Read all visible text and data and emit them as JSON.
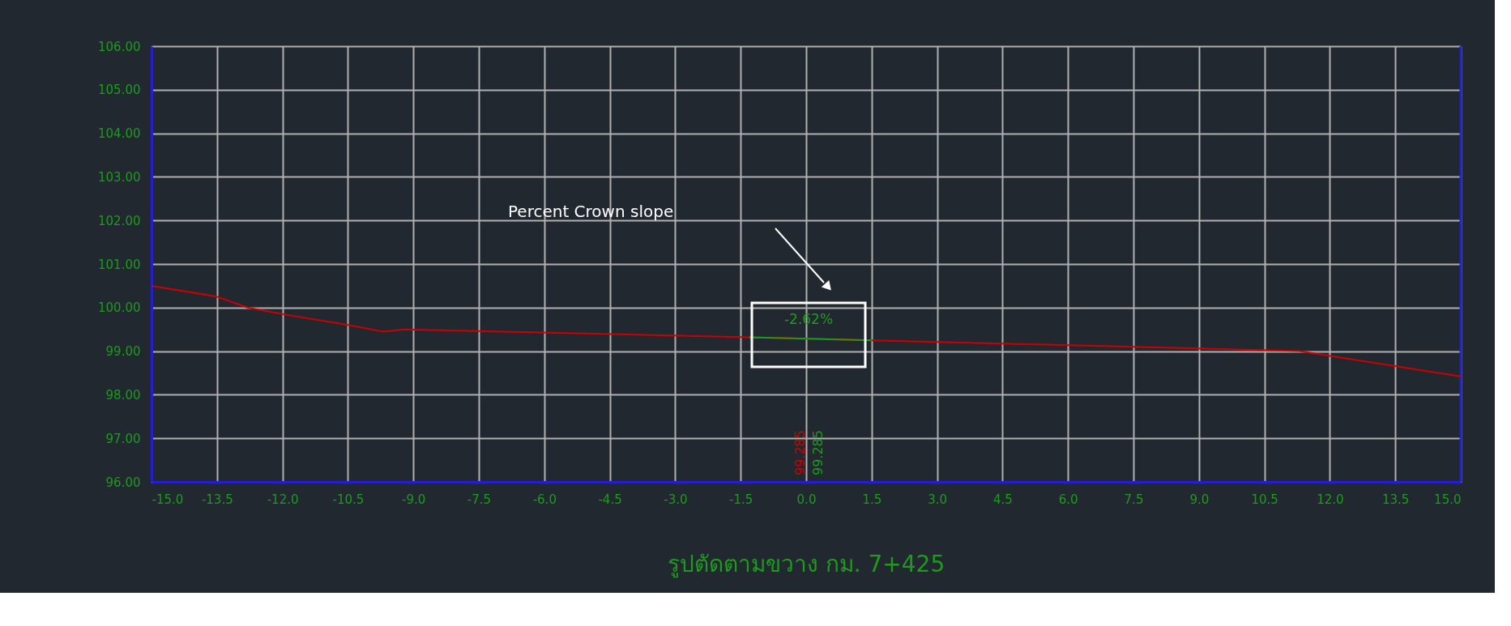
{
  "chart_data": {
    "type": "line",
    "title": "รูปตัดตามขวาง กม. 7+425",
    "series": [
      {
        "color": "#cc0000",
        "x": [
          -15,
          -13.5,
          -12.8,
          -12,
          -10.5,
          -9.7,
          -9.2,
          -1.3,
          1.5,
          11.3,
          15
        ],
        "values": [
          100.5,
          100.25,
          100.0,
          99.85,
          99.6,
          99.45,
          99.5,
          99.32,
          99.25,
          99.0,
          98.42
        ]
      },
      {
        "color": "#1f9a1f",
        "x": [
          -1.3,
          1.5
        ],
        "values": [
          99.32,
          99.25
        ]
      }
    ],
    "xlim": [
      -15,
      15
    ],
    "xticks": [
      {
        "value": -15,
        "label": "-15.0"
      },
      {
        "value": -13.5,
        "label": "-13.5"
      },
      {
        "value": -12,
        "label": "-12.0"
      },
      {
        "value": -10.5,
        "label": "-10.5"
      },
      {
        "value": -9,
        "label": "-9.0"
      },
      {
        "value": -7.5,
        "label": "-7.5"
      },
      {
        "value": -6,
        "label": "-6.0"
      },
      {
        "value": -4.5,
        "label": "-4.5"
      },
      {
        "value": -3,
        "label": "-3.0"
      },
      {
        "value": -1.5,
        "label": "-1.5"
      },
      {
        "value": 0,
        "label": "0.0"
      },
      {
        "value": 1.5,
        "label": "1.5"
      },
      {
        "value": 3,
        "label": "3.0"
      },
      {
        "value": 4.5,
        "label": "4.5"
      },
      {
        "value": 6,
        "label": "6.0"
      },
      {
        "value": 7.5,
        "label": "7.5"
      },
      {
        "value": 9,
        "label": "9.0"
      },
      {
        "value": 10.5,
        "label": "10.5"
      },
      {
        "value": 12,
        "label": "12.0"
      },
      {
        "value": 13.5,
        "label": "13.5"
      },
      {
        "value": 15,
        "label": "15.0"
      }
    ],
    "ylim": [
      96,
      106
    ],
    "yticks": [
      {
        "value": 96,
        "label": "96.00"
      },
      {
        "value": 97,
        "label": "97.00"
      },
      {
        "value": 98,
        "label": "98.00"
      },
      {
        "value": 99,
        "label": "99.00"
      },
      {
        "value": 100,
        "label": "100.00"
      },
      {
        "value": 101,
        "label": "101.00"
      },
      {
        "value": 102,
        "label": "102.00"
      },
      {
        "value": 103,
        "label": "103.00"
      },
      {
        "value": 104,
        "label": "104.00"
      },
      {
        "value": 105,
        "label": "105.00"
      },
      {
        "value": 106,
        "label": "106.00"
      }
    ],
    "grid": true,
    "annotations": [
      "Percent Crown slope",
      "-2.62%",
      "99.285",
      "99.285"
    ]
  }
}
